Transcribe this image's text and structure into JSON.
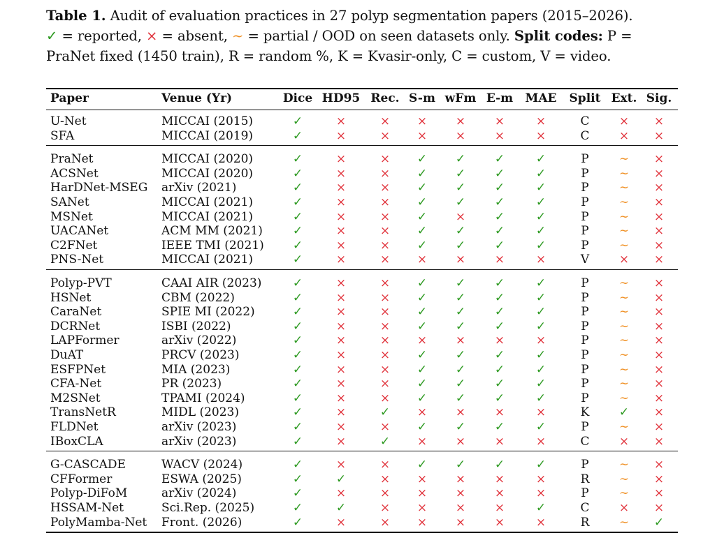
{
  "caption": {
    "label": "Table 1.",
    "text1": " Audit of evaluation practices in 27 polyp segmentation papers (2015–2026).",
    "legend_ok": "✓",
    "legend_ok_text": " = reported, ",
    "legend_no": "×",
    "legend_no_text": " = absent, ",
    "legend_pt": "∼",
    "legend_pt_text": " = partial / OOD on seen datasets only. ",
    "split_label": "Split codes:",
    "split_text": " P = PraNet fixed (1450 train), R = random %, K = Kvasir-only, C = custom, V = video."
  },
  "columns": [
    "Paper",
    "Venue (Yr)",
    "Dice",
    "HD95",
    "Rec.",
    "S-m",
    "wFm",
    "E-m",
    "MAE",
    "Split",
    "Ext.",
    "Sig."
  ],
  "symbols": {
    "ok": "✓",
    "no": "×",
    "pt": "∼"
  },
  "colors": {
    "ok": "#2e9a22",
    "no": "#e0313a",
    "pt": "#ef8d1e"
  },
  "groups": [
    {
      "rows": [
        {
          "paper": "U-Net",
          "venue": "MICCAI (2015)",
          "marks": [
            "ok",
            "no",
            "no",
            "no",
            "no",
            "no",
            "no"
          ],
          "split": "C",
          "ext": "no",
          "sig": "no"
        },
        {
          "paper": "SFA",
          "venue": "MICCAI (2019)",
          "marks": [
            "ok",
            "no",
            "no",
            "no",
            "no",
            "no",
            "no"
          ],
          "split": "C",
          "ext": "no",
          "sig": "no"
        }
      ]
    },
    {
      "rows": [
        {
          "paper": "PraNet",
          "venue": "MICCAI (2020)",
          "marks": [
            "ok",
            "no",
            "no",
            "ok",
            "ok",
            "ok",
            "ok"
          ],
          "split": "P",
          "ext": "pt",
          "sig": "no"
        },
        {
          "paper": "ACSNet",
          "venue": "MICCAI (2020)",
          "marks": [
            "ok",
            "no",
            "no",
            "ok",
            "ok",
            "ok",
            "ok"
          ],
          "split": "P",
          "ext": "pt",
          "sig": "no"
        },
        {
          "paper": "HarDNet-MSEG",
          "venue": "arXiv (2021)",
          "marks": [
            "ok",
            "no",
            "no",
            "ok",
            "ok",
            "ok",
            "ok"
          ],
          "split": "P",
          "ext": "pt",
          "sig": "no"
        },
        {
          "paper": "SANet",
          "venue": "MICCAI (2021)",
          "marks": [
            "ok",
            "no",
            "no",
            "ok",
            "ok",
            "ok",
            "ok"
          ],
          "split": "P",
          "ext": "pt",
          "sig": "no"
        },
        {
          "paper": "MSNet",
          "venue": "MICCAI (2021)",
          "marks": [
            "ok",
            "no",
            "no",
            "ok",
            "no",
            "ok",
            "ok"
          ],
          "split": "P",
          "ext": "pt",
          "sig": "no"
        },
        {
          "paper": "UACANet",
          "venue": "ACM MM (2021)",
          "marks": [
            "ok",
            "no",
            "no",
            "ok",
            "ok",
            "ok",
            "ok"
          ],
          "split": "P",
          "ext": "pt",
          "sig": "no"
        },
        {
          "paper": "C2FNet",
          "venue": "IEEE TMI (2021)",
          "marks": [
            "ok",
            "no",
            "no",
            "ok",
            "ok",
            "ok",
            "ok"
          ],
          "split": "P",
          "ext": "pt",
          "sig": "no"
        },
        {
          "paper": "PNS-Net",
          "venue": "MICCAI (2021)",
          "marks": [
            "ok",
            "no",
            "no",
            "no",
            "no",
            "no",
            "no"
          ],
          "split": "V",
          "ext": "no",
          "sig": "no"
        }
      ]
    },
    {
      "rows": [
        {
          "paper": "Polyp-PVT",
          "venue": "CAAI AIR (2023)",
          "marks": [
            "ok",
            "no",
            "no",
            "ok",
            "ok",
            "ok",
            "ok"
          ],
          "split": "P",
          "ext": "pt",
          "sig": "no"
        },
        {
          "paper": "HSNet",
          "venue": "CBM (2022)",
          "marks": [
            "ok",
            "no",
            "no",
            "ok",
            "ok",
            "ok",
            "ok"
          ],
          "split": "P",
          "ext": "pt",
          "sig": "no"
        },
        {
          "paper": "CaraNet",
          "venue": "SPIE MI (2022)",
          "marks": [
            "ok",
            "no",
            "no",
            "ok",
            "ok",
            "ok",
            "ok"
          ],
          "split": "P",
          "ext": "pt",
          "sig": "no"
        },
        {
          "paper": "DCRNet",
          "venue": "ISBI (2022)",
          "marks": [
            "ok",
            "no",
            "no",
            "ok",
            "ok",
            "ok",
            "ok"
          ],
          "split": "P",
          "ext": "pt",
          "sig": "no"
        },
        {
          "paper": "LAPFormer",
          "venue": "arXiv (2022)",
          "marks": [
            "ok",
            "no",
            "no",
            "no",
            "no",
            "no",
            "no"
          ],
          "split": "P",
          "ext": "pt",
          "sig": "no"
        },
        {
          "paper": "DuAT",
          "venue": "PRCV (2023)",
          "marks": [
            "ok",
            "no",
            "no",
            "ok",
            "ok",
            "ok",
            "ok"
          ],
          "split": "P",
          "ext": "pt",
          "sig": "no"
        },
        {
          "paper": "ESFPNet",
          "venue": "MIA (2023)",
          "marks": [
            "ok",
            "no",
            "no",
            "ok",
            "ok",
            "ok",
            "ok"
          ],
          "split": "P",
          "ext": "pt",
          "sig": "no"
        },
        {
          "paper": "CFA-Net",
          "venue": "PR (2023)",
          "marks": [
            "ok",
            "no",
            "no",
            "ok",
            "ok",
            "ok",
            "ok"
          ],
          "split": "P",
          "ext": "pt",
          "sig": "no"
        },
        {
          "paper": "M2SNet",
          "venue": "TPAMI (2024)",
          "marks": [
            "ok",
            "no",
            "no",
            "ok",
            "ok",
            "ok",
            "ok"
          ],
          "split": "P",
          "ext": "pt",
          "sig": "no"
        },
        {
          "paper": "TransNetR",
          "venue": "MIDL (2023)",
          "marks": [
            "ok",
            "no",
            "ok",
            "no",
            "no",
            "no",
            "no"
          ],
          "split": "K",
          "ext": "ok",
          "sig": "no"
        },
        {
          "paper": "FLDNet",
          "venue": "arXiv (2023)",
          "marks": [
            "ok",
            "no",
            "no",
            "ok",
            "ok",
            "ok",
            "ok"
          ],
          "split": "P",
          "ext": "pt",
          "sig": "no"
        },
        {
          "paper": "IBoxCLA",
          "venue": "arXiv (2023)",
          "marks": [
            "ok",
            "no",
            "ok",
            "no",
            "no",
            "no",
            "no"
          ],
          "split": "C",
          "ext": "no",
          "sig": "no"
        }
      ]
    },
    {
      "rows": [
        {
          "paper": "G-CASCADE",
          "venue": "WACV (2024)",
          "marks": [
            "ok",
            "no",
            "no",
            "ok",
            "ok",
            "ok",
            "ok"
          ],
          "split": "P",
          "ext": "pt",
          "sig": "no"
        },
        {
          "paper": "CFFormer",
          "venue": "ESWA (2025)",
          "marks": [
            "ok",
            "ok",
            "no",
            "no",
            "no",
            "no",
            "no"
          ],
          "split": "R",
          "ext": "pt",
          "sig": "no"
        },
        {
          "paper": "Polyp-DiFoM",
          "venue": "arXiv (2024)",
          "marks": [
            "ok",
            "no",
            "no",
            "no",
            "no",
            "no",
            "no"
          ],
          "split": "P",
          "ext": "pt",
          "sig": "no"
        },
        {
          "paper": "HSSAM-Net",
          "venue": "Sci.Rep. (2025)",
          "marks": [
            "ok",
            "ok",
            "no",
            "no",
            "no",
            "no",
            "ok"
          ],
          "split": "C",
          "ext": "no",
          "sig": "no"
        },
        {
          "paper": "PolyMamba-Net",
          "venue": "Front. (2026)",
          "marks": [
            "ok",
            "no",
            "no",
            "no",
            "no",
            "no",
            "no"
          ],
          "split": "R",
          "ext": "pt",
          "sig": "ok"
        }
      ]
    }
  ]
}
